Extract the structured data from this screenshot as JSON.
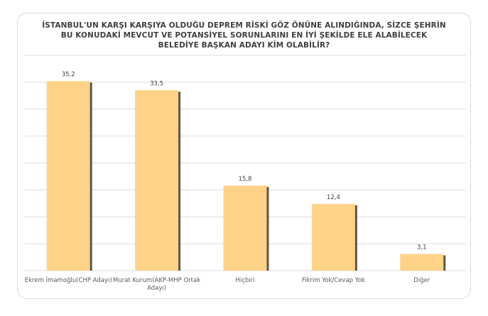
{
  "chart_data": {
    "type": "bar",
    "title": "İSTANBUL'UN KARŞI KARŞIYA OLDUĞU DEPREM RİSKİ GÖZ ÖNÜNE ALINDIĞINDA, SİZCE ŞEHRİN BU KONUDAKİ MEVCUT VE POTANSİYEL SORUNLARINI EN İYİ ŞEKİLDE ELE ALABİLECEK BELEDİYE BAŞKAN ADAYI KİM OLABİLİR?",
    "title_lines": [
      "İSTANBUL'UN KARŞI KARŞIYA OLDUĞU DEPREM RİSKİ GÖZ ÖNÜNE ALINDIĞINDA, SİZCE ŞEHRİN",
      "BU KONUDAKİ MEVCUT VE POTANSİYEL SORUNLARINI EN İYİ ŞEKİLDE ELE ALABİLECEK",
      "BELEDİYE BAŞKAN ADAYI KİM OLABİLİR?"
    ],
    "categories": [
      [
        "Ekrem İmamoğlu(CHP Adayı)"
      ],
      [
        "Murat Kurum(AKP-MHP Ortak",
        "Adayı)"
      ],
      [
        "Hiçbiri"
      ],
      [
        "Fikrim Yok/Cevap Yok"
      ],
      [
        "Diğer"
      ]
    ],
    "values": [
      35.2,
      33.5,
      15.8,
      12.4,
      3.1
    ],
    "value_labels": [
      "35,2",
      "33,5",
      "15,8",
      "12,4",
      "3,1"
    ],
    "ylim": [
      0,
      40
    ],
    "grid": true,
    "bar_color": "#FFD387",
    "bar_shadow_color": "#3a3a3a",
    "grid_color": "#dcdcdc"
  }
}
